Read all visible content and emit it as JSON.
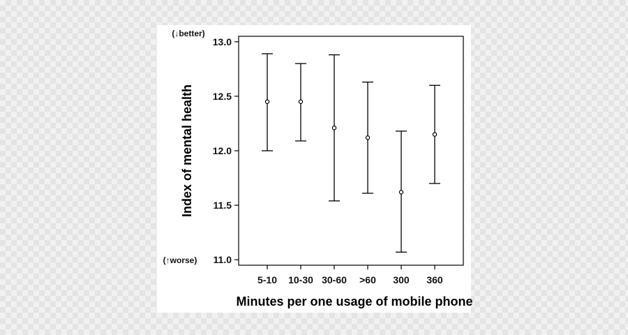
{
  "chart_data": {
    "type": "scatter",
    "xlabel": "Minutes per one usage of mobile phone",
    "ylabel": "Index of mental health",
    "ylim": [
      10.95,
      13.05
    ],
    "yticks": [
      11.0,
      11.5,
      12.0,
      12.5,
      13.0
    ],
    "ytick_labels": [
      "11.0",
      "11.5",
      "12.0",
      "12.5",
      "13.0"
    ],
    "categories": [
      "5-10",
      "10-30",
      "30-60",
      ">60",
      "300",
      "360"
    ],
    "series": [
      {
        "values": [
          12.45,
          12.45,
          12.21,
          12.12,
          11.62,
          12.15
        ],
        "lower": [
          12.0,
          12.09,
          11.54,
          11.61,
          11.07,
          11.7
        ],
        "upper": [
          12.89,
          12.8,
          12.88,
          12.63,
          12.18,
          12.6
        ]
      }
    ],
    "annotations": {
      "top": "(↓better)",
      "bottom": "(↑worse)"
    },
    "grid": false,
    "legend": "none",
    "colors": {
      "marks": "#000000",
      "background": "#ffffff"
    }
  }
}
